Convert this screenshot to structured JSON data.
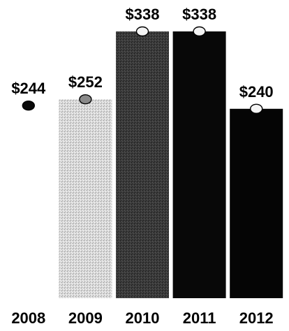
{
  "chart_data": {
    "type": "bar",
    "categories": [
      "2008",
      "2009",
      "2010",
      "2011",
      "2012"
    ],
    "values": [
      244,
      252,
      338,
      338,
      240
    ],
    "value_labels": [
      "$244",
      "$252",
      "$338",
      "$338",
      "$240"
    ],
    "title": "",
    "xlabel": "",
    "ylabel": "",
    "ylim": [
      0,
      338
    ],
    "grid": false,
    "legend": "none",
    "first_bar_hidden": true,
    "colors": {
      "bars": [
        "#ffffff",
        "#d2d2d2",
        "#3c3c3c",
        "#080808",
        "#050505"
      ],
      "markers": [
        "#0a0a0a",
        "#8a8a8a",
        "#f4f4f4",
        "#f4f4f4",
        "#f4f4f4"
      ],
      "text": "#000000"
    }
  }
}
